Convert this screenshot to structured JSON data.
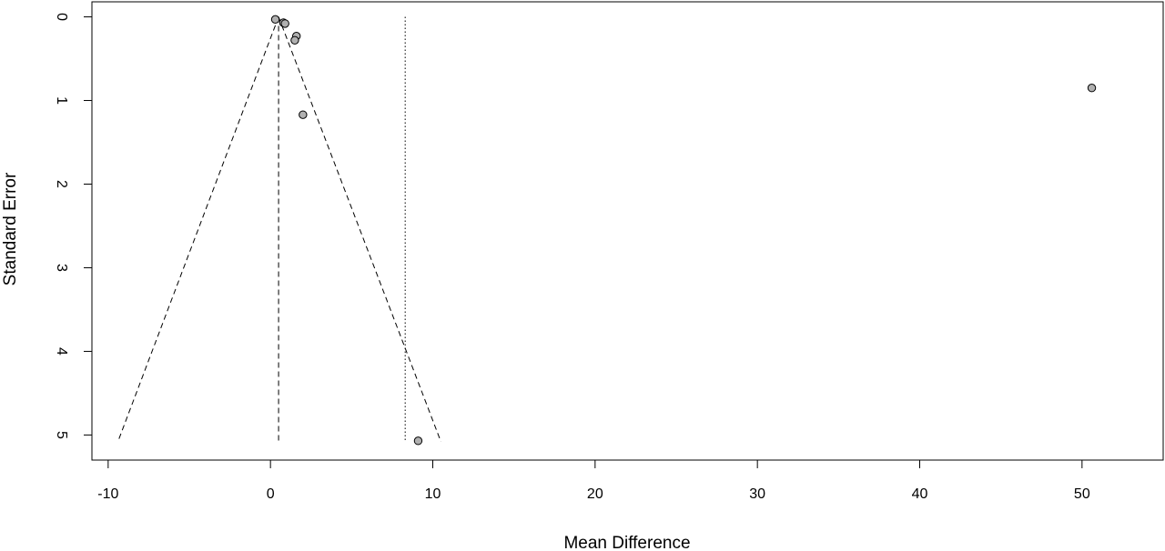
{
  "chart_data": {
    "type": "scatter",
    "subtype": "funnel-plot",
    "title": "",
    "xlabel": "Mean Difference",
    "ylabel": "Standard Error",
    "xlim": [
      -11,
      55
    ],
    "ylim": [
      -0.18,
      5.3
    ],
    "y_axis_reversed": true,
    "x_ticks": [
      -10,
      0,
      10,
      20,
      30,
      40,
      50
    ],
    "x_tick_labels": [
      "-10",
      "0",
      "10",
      "20",
      "30",
      "40",
      "50"
    ],
    "y_ticks": [
      0,
      1,
      2,
      3,
      4,
      5
    ],
    "y_tick_labels": [
      "0",
      "1",
      "2",
      "3",
      "4",
      "5"
    ],
    "grid": false,
    "legend": "none",
    "points": [
      {
        "x": 0.3,
        "y": 0.03
      },
      {
        "x": 0.8,
        "y": 0.07
      },
      {
        "x": 0.9,
        "y": 0.08
      },
      {
        "x": 1.6,
        "y": 0.23
      },
      {
        "x": 1.5,
        "y": 0.28
      },
      {
        "x": 2.0,
        "y": 1.17
      },
      {
        "x": 50.6,
        "y": 0.85
      },
      {
        "x": 9.1,
        "y": 5.07
      }
    ],
    "pooled_estimate_fixed": 0.5,
    "pooled_estimate_random": 8.3,
    "funnel_max_se": 5.08,
    "funnel_lines": [
      {
        "from": [
          0.5,
          0
        ],
        "to": [
          -9.4,
          5.08
        ],
        "style": "dashed"
      },
      {
        "from": [
          0.5,
          0
        ],
        "to": [
          10.5,
          5.08
        ],
        "style": "dashed"
      }
    ],
    "point_color": "#b0b0b0",
    "line_color": "#000000"
  }
}
